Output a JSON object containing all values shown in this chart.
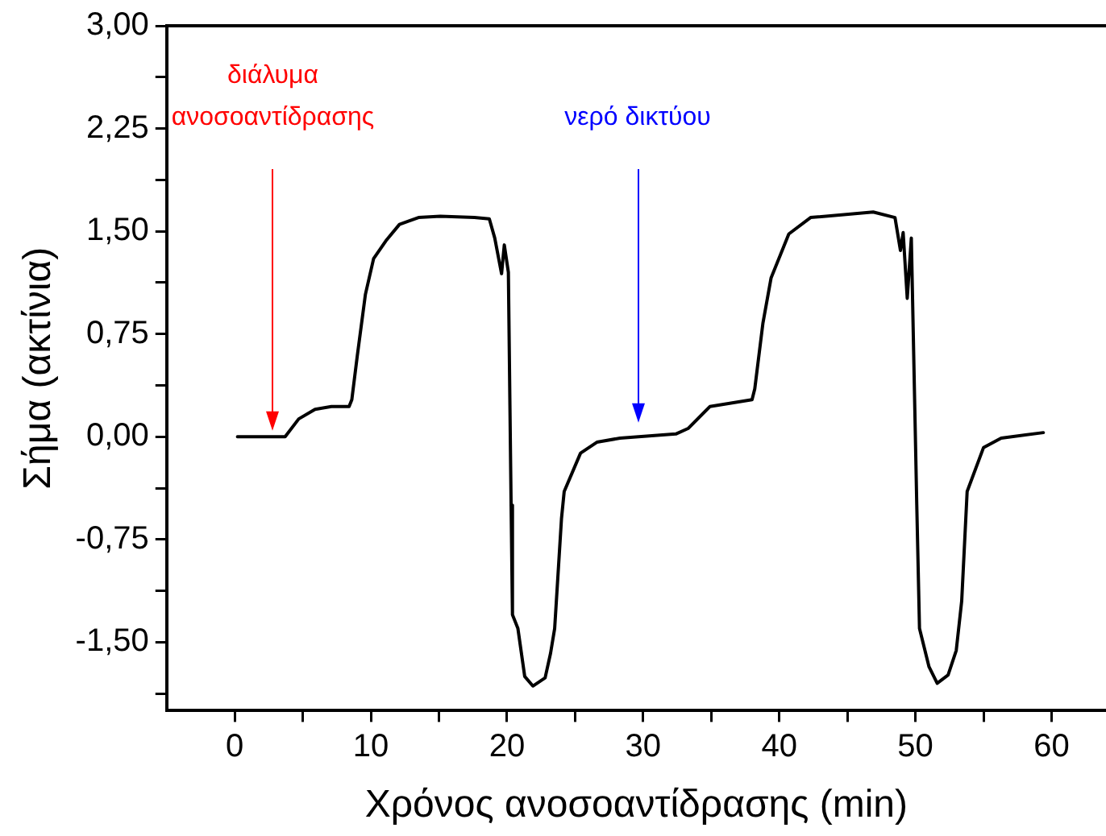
{
  "chart_data": {
    "type": "line",
    "xlabel": "Χρόνος ανοσοαντίδρασης (min)",
    "ylabel": "Σήμα (ακτίνια)",
    "xlim": [
      -5,
      64
    ],
    "ylim": [
      -2,
      3
    ],
    "xticks": [
      0,
      {
        "value": 5,
        "label": null
      },
      10,
      {
        "value": 15,
        "label": null
      },
      20,
      {
        "value": 25,
        "label": null
      },
      30,
      {
        "value": 35,
        "label": null
      },
      40,
      {
        "value": 45,
        "label": null
      },
      50,
      {
        "value": 55,
        "label": null
      },
      60
    ],
    "yticks": [
      {
        "value": -1.875,
        "label": null
      },
      {
        "value": -1.5,
        "label": "-1,50"
      },
      {
        "value": -1.125,
        "label": null
      },
      {
        "value": -0.75,
        "label": "-0,75"
      },
      {
        "value": -0.375,
        "label": null
      },
      {
        "value": 0,
        "label": "0,00"
      },
      {
        "value": 0.375,
        "label": null
      },
      {
        "value": 0.75,
        "label": "0,75"
      },
      {
        "value": 1.125,
        "label": null
      },
      {
        "value": 1.5,
        "label": "1,50"
      },
      {
        "value": 1.875,
        "label": null
      },
      {
        "value": 2.25,
        "label": "2,25"
      },
      {
        "value": 2.625,
        "label": null
      },
      {
        "value": 3,
        "label": "3,00"
      }
    ],
    "grid": false,
    "legend": false,
    "marker": "none",
    "line_style": "solid",
    "annotations": [
      "διάλυμα ανοσοαντίδρασης",
      "νερό δικτύου"
    ],
    "series": [
      {
        "color": "#000000",
        "x": [
          0.2,
          3.7,
          4.7,
          5.9,
          7.1,
          8.4,
          8.6,
          9.0,
          9.6,
          10.2,
          11.1,
          12.1,
          13.5,
          15.1,
          17.6,
          18.7,
          19.1,
          19.6,
          19.8,
          20.1,
          20.3,
          20.4,
          20.8,
          21.3,
          21.9,
          22.8,
          23.2,
          23.5,
          24.0,
          24.2,
          25.4,
          26.6,
          28.3,
          32.4,
          33.3,
          34.9,
          38.0,
          38.2,
          38.8,
          39.4,
          40.7,
          42.3,
          46.9,
          48.5,
          48.9,
          49.1,
          49.4,
          49.7,
          50.1,
          50.3,
          51.0,
          51.6,
          52.4,
          53.0,
          53.4,
          53.8,
          55.0,
          56.3,
          59.4
        ],
        "values": [
          0,
          0,
          0.13,
          0.2,
          0.22,
          0.22,
          0.27,
          0.59,
          1.04,
          1.3,
          1.43,
          1.55,
          1.6,
          1.61,
          1.6,
          1.59,
          1.45,
          1.19,
          1.4,
          1.2,
          -0.5,
          -1.3,
          -1.4,
          -1.75,
          -1.82,
          -1.76,
          -1.58,
          -1.4,
          -0.6,
          -0.4,
          -0.12,
          -0.04,
          -0.01,
          0.02,
          0.06,
          0.22,
          0.27,
          0.35,
          0.83,
          1.16,
          1.48,
          1.6,
          1.64,
          1.6,
          1.36,
          1.49,
          1.01,
          1.45,
          -0.5,
          -1.4,
          -1.68,
          -1.8,
          -1.74,
          -1.56,
          -1.2,
          -0.4,
          -0.08,
          -0.01,
          0.03
        ]
      }
    ]
  }
}
